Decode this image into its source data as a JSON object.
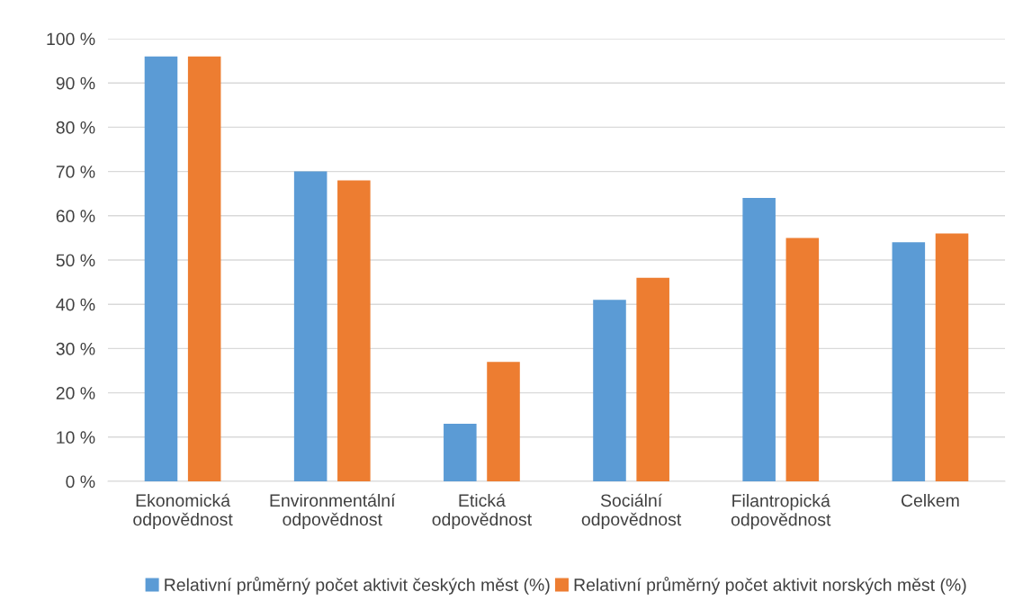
{
  "chart_data": {
    "type": "bar",
    "categories": [
      "Ekonomická\nodpovědnost",
      "Environmentální\nodpovědnost",
      "Etická\nodpovědnost",
      "Sociální\nodpovědnost",
      "Filantropická\nodpovědnost",
      "Celkem"
    ],
    "series": [
      {
        "name": "Relativní průměrný počet aktivit českých měst (%)",
        "color": "#5b9bd5",
        "values": [
          96,
          70,
          13,
          41,
          64,
          54
        ]
      },
      {
        "name": "Relativní průměrný počet aktivit norských měst (%)",
        "color": "#ed7d31",
        "values": [
          96,
          68,
          27,
          46,
          55,
          56
        ]
      }
    ],
    "ylim": [
      0,
      100
    ],
    "yticks": [
      {
        "value": 0,
        "label": "0 %"
      },
      {
        "value": 10,
        "label": "10 %"
      },
      {
        "value": 20,
        "label": "20 %"
      },
      {
        "value": 30,
        "label": "30 %"
      },
      {
        "value": 40,
        "label": "40 %"
      },
      {
        "value": 50,
        "label": "50 %"
      },
      {
        "value": 60,
        "label": "60 %"
      },
      {
        "value": 70,
        "label": "70 %"
      },
      {
        "value": 80,
        "label": "80 %"
      },
      {
        "value": 90,
        "label": "90 %"
      },
      {
        "value": 100,
        "label": "100 %"
      }
    ],
    "grid": "y",
    "legend": "bottom"
  }
}
